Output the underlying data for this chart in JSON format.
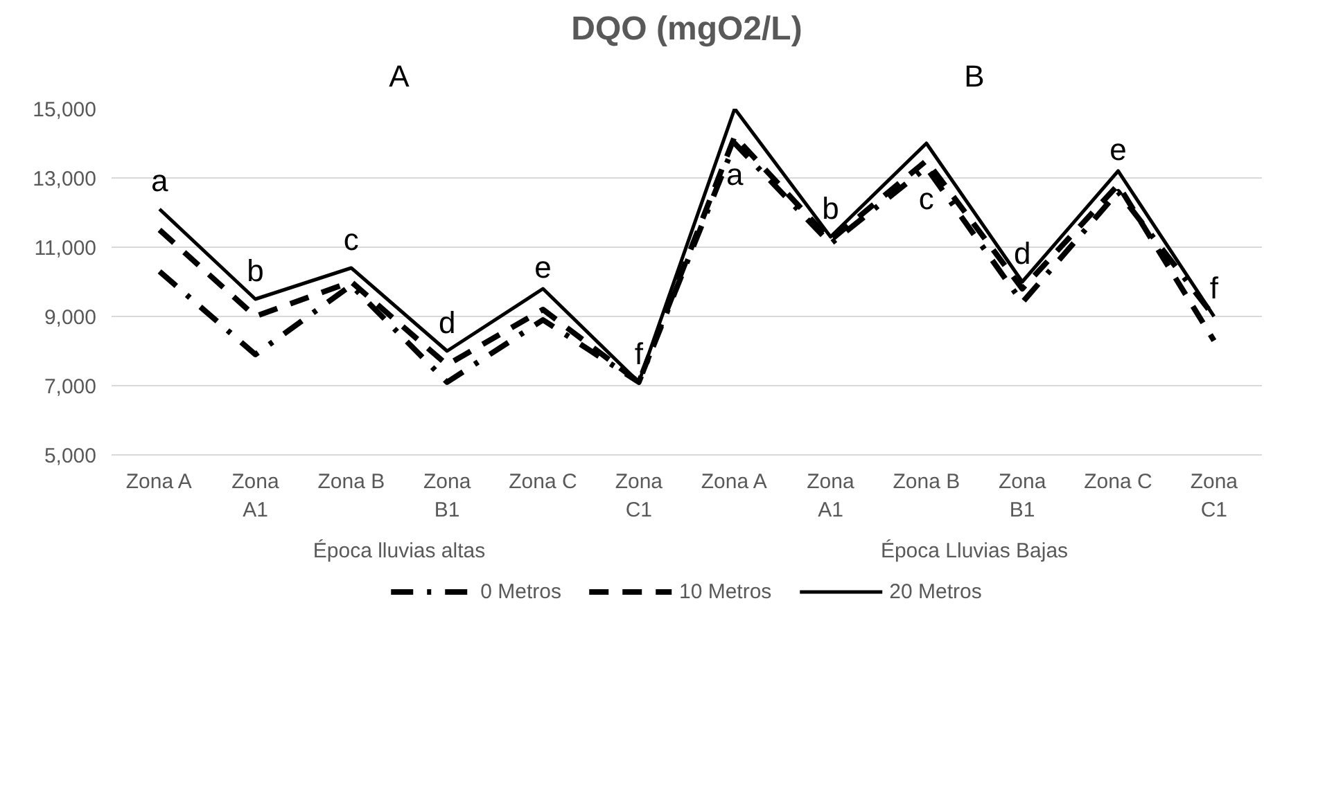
{
  "chart_data": {
    "type": "line",
    "title": "DQO (mgO2/L)",
    "categories": [
      "Zona A",
      "Zona A1",
      "Zona B",
      "Zona B1",
      "Zona C",
      "Zona C1",
      "Zona A",
      "Zona A1",
      "Zona B",
      "Zona B1",
      "Zona C",
      "Zona C1"
    ],
    "series": [
      {
        "name": "0 Metros",
        "color": "#000000",
        "line_style": "dotted",
        "values": [
          10300,
          7900,
          9900,
          7100,
          8900,
          7100,
          14000,
          11100,
          13300,
          9400,
          12600,
          9000
        ]
      },
      {
        "name": "10 Metros",
        "color": "#000000",
        "line_style": "dashed",
        "values": [
          11500,
          9000,
          10000,
          7600,
          9200,
          7100,
          14200,
          11200,
          13500,
          9800,
          12800,
          8300
        ]
      },
      {
        "name": "20 Metros",
        "color": "#000000",
        "line_style": "solid",
        "values": [
          12100,
          9500,
          10400,
          8000,
          9800,
          7100,
          15000,
          11300,
          14000,
          10000,
          13200,
          9000
        ]
      }
    ],
    "ylim": [
      5000,
      15000
    ],
    "yticks": [
      {
        "value": 5000,
        "label": "5,000"
      },
      {
        "value": 7000,
        "label": "7,000"
      },
      {
        "value": 9000,
        "label": "9,000"
      },
      {
        "value": 11000,
        "label": "11,000"
      },
      {
        "value": 13000,
        "label": "13,000"
      },
      {
        "value": 15000,
        "label": "15,000"
      }
    ],
    "grid": "y",
    "legend": "bottom",
    "marker": "none",
    "annotations": [
      "A",
      "a",
      "b",
      "c",
      "d",
      "e",
      "f",
      "B",
      "a",
      "b",
      "c",
      "d",
      "e",
      "f",
      "Época lluvias altas",
      "Época Lluvias Bajas"
    ]
  }
}
